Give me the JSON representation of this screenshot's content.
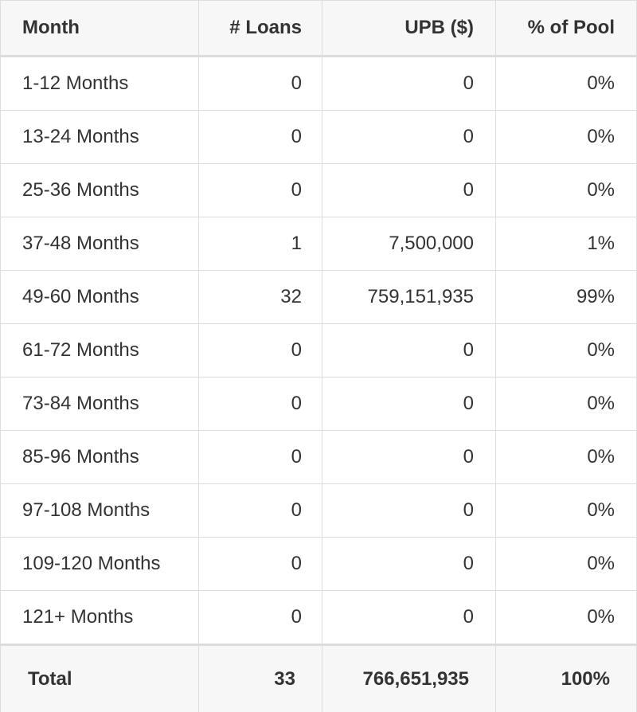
{
  "table": {
    "header": [
      "Month",
      "# Loans",
      "UPB ($)",
      "% of Pool"
    ],
    "rows": [
      [
        "1-12 Months",
        "0",
        "0",
        "0%"
      ],
      [
        "13-24 Months",
        "0",
        "0",
        "0%"
      ],
      [
        "25-36 Months",
        "0",
        "0",
        "0%"
      ],
      [
        "37-48 Months",
        "1",
        "7,500,000",
        "1%"
      ],
      [
        "49-60 Months",
        "32",
        "759,151,935",
        "99%"
      ],
      [
        "61-72 Months",
        "0",
        "0",
        "0%"
      ],
      [
        "73-84 Months",
        "0",
        "0",
        "0%"
      ],
      [
        "85-96 Months",
        "0",
        "0",
        "0%"
      ],
      [
        "97-108 Months",
        "0",
        "0",
        "0%"
      ],
      [
        "109-120 Months",
        "0",
        "0",
        "0%"
      ],
      [
        "121+ Months",
        "0",
        "0",
        "0%"
      ]
    ],
    "total": [
      "Total",
      "33",
      "766,651,935",
      "100%"
    ]
  }
}
